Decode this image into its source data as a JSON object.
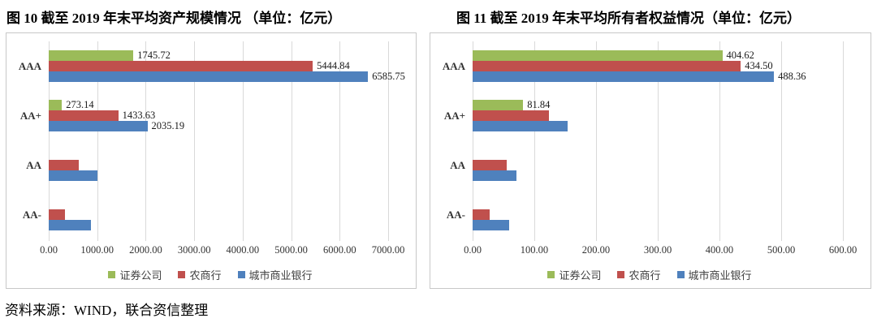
{
  "source_note": "资料来源：WIND，联合资信整理",
  "colors": {
    "grid": "#d9d9d9",
    "box_border": "#c8c8c8",
    "green": "#9BBB59",
    "red": "#C0504D",
    "blue": "#4F81BD"
  },
  "chart_data": [
    {
      "type": "bar",
      "orientation": "horizontal",
      "title": "图 10  截至 2019 年末平均资产规模情况 （单位：亿元）",
      "categories": [
        "AAA",
        "AA+",
        "AA",
        "AA-"
      ],
      "series": [
        {
          "name": "证券公司",
          "color": "#9BBB59",
          "values": [
            1745.72,
            273.14,
            0,
            0
          ],
          "labels": [
            "1745.72",
            "273.14",
            null,
            null
          ]
        },
        {
          "name": "农商行",
          "color": "#C0504D",
          "values": [
            5444.84,
            1433.63,
            620,
            330
          ],
          "labels": [
            "5444.84",
            "1433.63",
            null,
            null
          ]
        },
        {
          "name": "城市商业银行",
          "color": "#4F81BD",
          "values": [
            6585.75,
            2035.19,
            1005,
            870
          ],
          "labels": [
            "6585.75",
            "2035.19",
            null,
            null
          ]
        }
      ],
      "xlim": [
        0,
        7000
      ],
      "xticks": [
        "0.00",
        "1000.00",
        "2000.00",
        "3000.00",
        "4000.00",
        "5000.00",
        "6000.00",
        "7000.00"
      ],
      "grid": true,
      "legend_position": "bottom"
    },
    {
      "type": "bar",
      "orientation": "horizontal",
      "title": "图 11  截至 2019 年末平均所有者权益情况（单位：亿元）",
      "categories": [
        "AAA",
        "AA+",
        "AA",
        "AA-"
      ],
      "series": [
        {
          "name": "证券公司",
          "color": "#9BBB59",
          "values": [
            404.62,
            81.84,
            0,
            0
          ],
          "labels": [
            "404.62",
            "81.84",
            null,
            null
          ]
        },
        {
          "name": "农商行",
          "color": "#C0504D",
          "values": [
            434.5,
            124,
            55,
            28
          ],
          "labels": [
            "434.50",
            null,
            null,
            null
          ]
        },
        {
          "name": "城市商业银行",
          "color": "#4F81BD",
          "values": [
            488.36,
            154,
            71,
            59
          ],
          "labels": [
            "488.36",
            null,
            null,
            null
          ]
        }
      ],
      "xlim": [
        0,
        600
      ],
      "xticks": [
        "0.00",
        "100.00",
        "200.00",
        "300.00",
        "400.00",
        "500.00",
        "600.00"
      ],
      "grid": true,
      "legend_position": "bottom"
    }
  ]
}
